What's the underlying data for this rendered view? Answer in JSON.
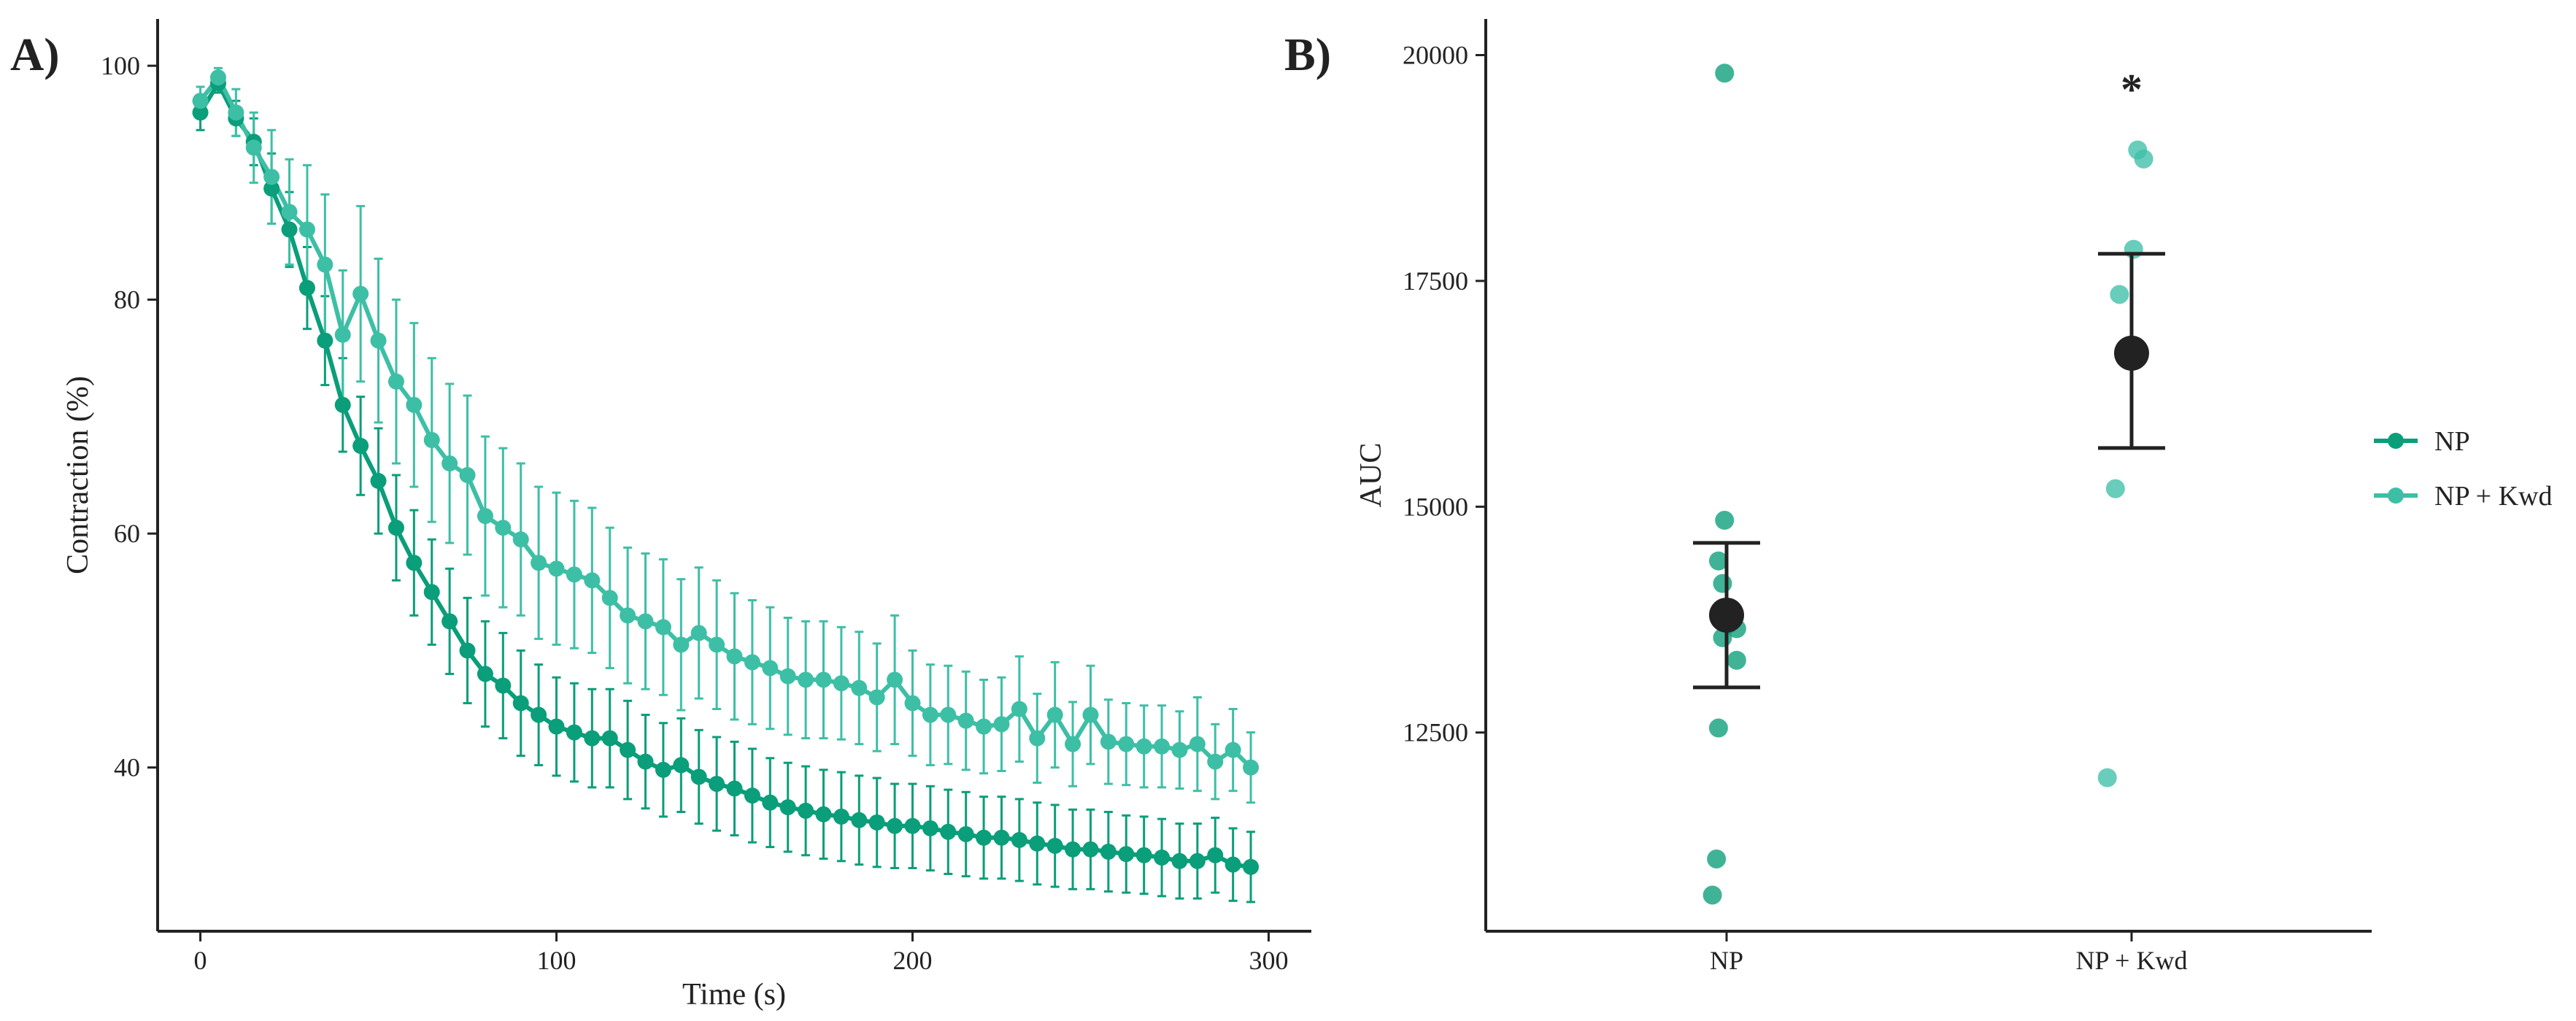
{
  "figure": {
    "panel_a_label": "A)",
    "panel_b_label": "B)"
  },
  "colors": {
    "np": "#0a9e7a",
    "np_kwd": "#3dbfa6",
    "mean_marker": "#222222",
    "axis": "#222222"
  },
  "legend": {
    "items": [
      {
        "label": "NP",
        "color": "#0a9e7a"
      },
      {
        "label": "NP + Kwd",
        "color": "#3dbfa6"
      }
    ],
    "placement": "right"
  },
  "chart_data": [
    {
      "type": "line",
      "panel": "A)",
      "title": "",
      "xlabel": "Time (s)",
      "ylabel": "Contraction (%)",
      "xlim": [
        -12,
        312
      ],
      "ylim": [
        26,
        104
      ],
      "x_ticks": [
        0,
        100,
        200,
        300
      ],
      "y_ticks": [
        40,
        60,
        80,
        100
      ],
      "grid": false,
      "x": [
        0,
        5,
        10,
        15,
        20,
        25,
        30,
        35,
        40,
        45,
        50,
        55,
        60,
        65,
        70,
        75,
        80,
        85,
        90,
        95,
        100,
        105,
        110,
        115,
        120,
        125,
        130,
        135,
        140,
        145,
        150,
        155,
        160,
        165,
        170,
        175,
        180,
        185,
        190,
        195,
        200,
        205,
        210,
        215,
        220,
        225,
        230,
        235,
        240,
        245,
        250,
        255,
        260,
        265,
        270,
        275,
        280,
        285,
        290,
        295
      ],
      "series": [
        {
          "name": "NP",
          "values": [
            96.0,
            98.5,
            95.5,
            93.5,
            89.5,
            86.0,
            81.0,
            76.5,
            71.0,
            67.5,
            64.5,
            60.5,
            57.5,
            55.0,
            52.5,
            50.0,
            48.0,
            47.0,
            45.5,
            44.5,
            43.5,
            43.0,
            42.5,
            42.5,
            41.5,
            40.5,
            39.8,
            40.2,
            39.2,
            38.6,
            38.2,
            37.6,
            37.0,
            36.6,
            36.3,
            36.0,
            35.8,
            35.5,
            35.3,
            35.0,
            35.0,
            34.8,
            34.5,
            34.3,
            34.0,
            34.0,
            33.8,
            33.5,
            33.3,
            33.0,
            33.0,
            32.8,
            32.6,
            32.5,
            32.3,
            32.0,
            32.0,
            32.5,
            31.7,
            31.5
          ],
          "error": [
            1.5,
            0.8,
            1.5,
            2.0,
            3.0,
            3.2,
            3.5,
            3.8,
            4.0,
            4.2,
            4.5,
            4.5,
            4.5,
            4.5,
            4.5,
            4.5,
            4.5,
            4.5,
            4.5,
            4.3,
            4.2,
            4.2,
            4.2,
            4.2,
            4.2,
            4.0,
            4.0,
            4.0,
            4.0,
            4.0,
            4.0,
            4.0,
            3.8,
            3.8,
            3.8,
            3.8,
            3.8,
            3.8,
            3.8,
            3.6,
            3.6,
            3.6,
            3.6,
            3.6,
            3.5,
            3.5,
            3.5,
            3.5,
            3.5,
            3.4,
            3.4,
            3.4,
            3.3,
            3.3,
            3.3,
            3.2,
            3.2,
            3.2,
            3.1,
            3.0
          ]
        },
        {
          "name": "NP + Kwd",
          "values": [
            97.0,
            99.0,
            96.0,
            93.0,
            90.5,
            87.5,
            86.0,
            83.0,
            77.0,
            80.5,
            76.5,
            73.0,
            71.0,
            68.0,
            66.0,
            65.0,
            61.5,
            60.5,
            59.5,
            57.5,
            57.0,
            56.5,
            56.0,
            54.5,
            53.0,
            52.5,
            52.0,
            50.5,
            51.5,
            50.5,
            49.5,
            49.0,
            48.5,
            47.8,
            47.5,
            47.5,
            47.2,
            46.8,
            46.0,
            47.5,
            45.5,
            44.5,
            44.5,
            44.0,
            43.5,
            43.7,
            45.0,
            42.5,
            44.5,
            42.0,
            44.5,
            42.2,
            42.0,
            41.8,
            41.8,
            41.5,
            42.0,
            40.5,
            41.5,
            40.0
          ],
          "error": [
            1.2,
            0.8,
            2.0,
            3.0,
            4.0,
            4.5,
            5.5,
            6.0,
            5.5,
            7.5,
            7.0,
            7.0,
            7.0,
            7.0,
            6.8,
            6.8,
            6.8,
            6.8,
            6.5,
            6.5,
            6.5,
            6.3,
            6.2,
            6.0,
            5.8,
            5.8,
            5.8,
            5.6,
            5.6,
            5.5,
            5.4,
            5.3,
            5.2,
            5.0,
            5.0,
            5.0,
            4.8,
            4.8,
            4.6,
            5.5,
            4.5,
            4.3,
            4.2,
            4.2,
            4.0,
            4.0,
            4.5,
            3.8,
            4.5,
            3.6,
            4.2,
            3.6,
            3.5,
            3.5,
            3.5,
            3.3,
            4.0,
            3.2,
            3.5,
            3.0
          ]
        }
      ]
    },
    {
      "type": "scatter",
      "panel": "B)",
      "title": "",
      "xlabel": "",
      "ylabel": "AUC",
      "categories": [
        "NP",
        "NP + Kwd"
      ],
      "ylim": [
        10300,
        20400
      ],
      "y_ticks": [
        12500,
        15000,
        17500,
        20000
      ],
      "grid": false,
      "series": [
        {
          "name": "NP",
          "points": [
            {
              "x": -0.01,
              "y": 19800
            },
            {
              "x": -0.04,
              "y": 14400
            },
            {
              "x": -0.01,
              "y": 14850
            },
            {
              "x": -0.02,
              "y": 14150
            },
            {
              "x": 0.01,
              "y": 13700
            },
            {
              "x": 0.05,
              "y": 13650
            },
            {
              "x": -0.02,
              "y": 13550
            },
            {
              "x": 0.05,
              "y": 13300
            },
            {
              "x": -0.04,
              "y": 12550
            },
            {
              "x": -0.05,
              "y": 11100
            },
            {
              "x": -0.07,
              "y": 10700
            }
          ],
          "mean": 13800,
          "ci": [
            13000,
            14600
          ]
        },
        {
          "name": "NP + Kwd",
          "points": [
            {
              "x": 0.03,
              "y": 18950
            },
            {
              "x": 0.06,
              "y": 18850
            },
            {
              "x": 0.01,
              "y": 17850
            },
            {
              "x": -0.06,
              "y": 17350
            },
            {
              "x": -0.08,
              "y": 15200
            },
            {
              "x": -0.12,
              "y": 12000
            }
          ],
          "mean": 16700,
          "ci": [
            15650,
            17800
          ]
        }
      ],
      "annotations": [
        {
          "text": "*",
          "category": "NP + Kwd",
          "y": 19700
        }
      ]
    }
  ]
}
